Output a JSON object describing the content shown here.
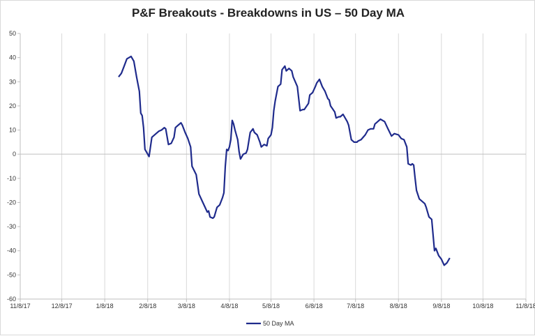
{
  "chart_data": {
    "type": "line",
    "title": "P&F Breakouts - Breakdowns in US – 50 Day MA",
    "xlabel": "",
    "ylabel": "",
    "ylim": [
      -60,
      50
    ],
    "yticks": [
      "50",
      "40",
      "30",
      "20",
      "10",
      "0",
      "-10",
      "-20",
      "-30",
      "-40",
      "-50",
      "-60"
    ],
    "xlim": [
      "2017-11-08",
      "2018-11-08"
    ],
    "xticks": [
      "11/8/17",
      "12/8/17",
      "1/8/18",
      "2/8/18",
      "3/8/18",
      "4/8/18",
      "5/8/18",
      "6/8/18",
      "7/8/18",
      "8/8/18",
      "9/8/18",
      "10/8/18",
      "11/8/18"
    ],
    "grid": "vertical",
    "legend": "bottom",
    "series": [
      {
        "name": "50 Day MA",
        "color": "#1f2b8c",
        "points": [
          [
            "2018-01-18",
            32
          ],
          [
            "2018-01-20",
            33.5
          ],
          [
            "2018-01-22",
            36.5
          ],
          [
            "2018-01-24",
            39.5
          ],
          [
            "2018-01-27",
            40.5
          ],
          [
            "2018-01-29",
            38.5
          ],
          [
            "2018-01-31",
            32
          ],
          [
            "2018-02-02",
            26
          ],
          [
            "2018-02-03",
            17
          ],
          [
            "2018-02-04",
            16
          ],
          [
            "2018-02-05",
            11
          ],
          [
            "2018-02-06",
            2
          ],
          [
            "2018-02-07",
            1
          ],
          [
            "2018-02-09",
            -1
          ],
          [
            "2018-02-11",
            7
          ],
          [
            "2018-02-14",
            8.5
          ],
          [
            "2018-02-16",
            9.5
          ],
          [
            "2018-02-18",
            10
          ],
          [
            "2018-02-20",
            11
          ],
          [
            "2018-02-21",
            10.5
          ],
          [
            "2018-02-23",
            4
          ],
          [
            "2018-02-25",
            4.5
          ],
          [
            "2018-02-27",
            7
          ],
          [
            "2018-02-28",
            11
          ],
          [
            "2018-03-02",
            12
          ],
          [
            "2018-03-04",
            13
          ],
          [
            "2018-03-05",
            12
          ],
          [
            "2018-03-07",
            9
          ],
          [
            "2018-03-09",
            6.5
          ],
          [
            "2018-03-11",
            3
          ],
          [
            "2018-03-12",
            -5
          ],
          [
            "2018-03-15",
            -8.5
          ],
          [
            "2018-03-17",
            -16.5
          ],
          [
            "2018-03-19",
            -19
          ],
          [
            "2018-03-21",
            -21.5
          ],
          [
            "2018-03-23",
            -24
          ],
          [
            "2018-03-24",
            -23.5
          ],
          [
            "2018-03-25",
            -26
          ],
          [
            "2018-03-27",
            -26.5
          ],
          [
            "2018-03-28",
            -26
          ],
          [
            "2018-03-30",
            -22
          ],
          [
            "2018-04-01",
            -21
          ],
          [
            "2018-04-03",
            -18
          ],
          [
            "2018-04-04",
            -16
          ],
          [
            "2018-04-05",
            -5
          ],
          [
            "2018-04-06",
            2
          ],
          [
            "2018-04-07",
            1.5
          ],
          [
            "2018-04-08",
            3
          ],
          [
            "2018-04-09",
            6
          ],
          [
            "2018-04-10",
            14
          ],
          [
            "2018-04-11",
            12.5
          ],
          [
            "2018-04-12",
            10
          ],
          [
            "2018-04-14",
            6
          ],
          [
            "2018-04-15",
            1
          ],
          [
            "2018-04-16",
            -2
          ],
          [
            "2018-04-18",
            0
          ],
          [
            "2018-04-20",
            0.5
          ],
          [
            "2018-04-21",
            2
          ],
          [
            "2018-04-23",
            9
          ],
          [
            "2018-04-25",
            10.5
          ],
          [
            "2018-04-26",
            9
          ],
          [
            "2018-04-28",
            8
          ],
          [
            "2018-04-30",
            5
          ],
          [
            "2018-05-01",
            3
          ],
          [
            "2018-05-03",
            4
          ],
          [
            "2018-05-05",
            3.5
          ],
          [
            "2018-05-06",
            6.5
          ],
          [
            "2018-05-08",
            8
          ],
          [
            "2018-05-09",
            11
          ],
          [
            "2018-05-10",
            18
          ],
          [
            "2018-05-11",
            22
          ],
          [
            "2018-05-13",
            28
          ],
          [
            "2018-05-15",
            29
          ],
          [
            "2018-05-16",
            35
          ],
          [
            "2018-05-18",
            36.5
          ],
          [
            "2018-05-19",
            34.5
          ],
          [
            "2018-05-21",
            35.5
          ],
          [
            "2018-05-23",
            34.5
          ],
          [
            "2018-05-24",
            32
          ],
          [
            "2018-05-27",
            28
          ],
          [
            "2018-05-29",
            18
          ],
          [
            "2018-05-31",
            18.5
          ],
          [
            "2018-06-01",
            18.5
          ],
          [
            "2018-06-04",
            21
          ],
          [
            "2018-06-05",
            24.5
          ],
          [
            "2018-06-07",
            25.5
          ],
          [
            "2018-06-09",
            28
          ],
          [
            "2018-06-10",
            29.5
          ],
          [
            "2018-06-12",
            31
          ],
          [
            "2018-06-14",
            28
          ],
          [
            "2018-06-16",
            26
          ],
          [
            "2018-06-18",
            23
          ],
          [
            "2018-06-19",
            22.5
          ],
          [
            "2018-06-20",
            20
          ],
          [
            "2018-06-23",
            17.5
          ],
          [
            "2018-06-24",
            15
          ],
          [
            "2018-06-26",
            15.5
          ],
          [
            "2018-06-27",
            15.5
          ],
          [
            "2018-06-29",
            16.5
          ],
          [
            "2018-07-02",
            13.5
          ],
          [
            "2018-07-03",
            12
          ],
          [
            "2018-07-05",
            6
          ],
          [
            "2018-07-07",
            5
          ],
          [
            "2018-07-09",
            5
          ],
          [
            "2018-07-10",
            5.5
          ],
          [
            "2018-07-12",
            6
          ],
          [
            "2018-07-15",
            8
          ],
          [
            "2018-07-17",
            10
          ],
          [
            "2018-07-19",
            10.5
          ],
          [
            "2018-07-21",
            10.5
          ],
          [
            "2018-07-22",
            12.5
          ],
          [
            "2018-07-24",
            13.5
          ],
          [
            "2018-07-26",
            14.5
          ],
          [
            "2018-07-29",
            13.5
          ],
          [
            "2018-07-31",
            11
          ],
          [
            "2018-08-03",
            7.5
          ],
          [
            "2018-08-05",
            8.5
          ],
          [
            "2018-08-08",
            8
          ],
          [
            "2018-08-10",
            6.5
          ],
          [
            "2018-08-12",
            6
          ],
          [
            "2018-08-14",
            3
          ],
          [
            "2018-08-15",
            -4
          ],
          [
            "2018-08-17",
            -4.5
          ],
          [
            "2018-08-18",
            -4
          ],
          [
            "2018-08-19",
            -4.5
          ],
          [
            "2018-08-20",
            -10
          ],
          [
            "2018-08-21",
            -15
          ],
          [
            "2018-08-23",
            -18.5
          ],
          [
            "2018-08-25",
            -19.5
          ],
          [
            "2018-08-27",
            -20.5
          ],
          [
            "2018-08-28",
            -22
          ],
          [
            "2018-08-30",
            -26
          ],
          [
            "2018-09-01",
            -27
          ],
          [
            "2018-09-03",
            -40
          ],
          [
            "2018-09-04",
            -39
          ],
          [
            "2018-09-06",
            -42
          ],
          [
            "2018-09-08",
            -43.5
          ],
          [
            "2018-09-10",
            -46
          ],
          [
            "2018-09-12",
            -45
          ],
          [
            "2018-09-14",
            -43
          ]
        ]
      }
    ]
  }
}
